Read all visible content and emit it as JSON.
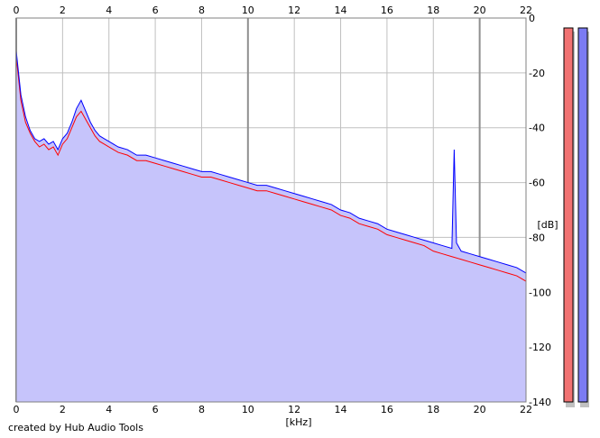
{
  "chart_data": {
    "type": "line",
    "title": "",
    "xlabel": "[kHz]",
    "ylabel": "[dB]",
    "xlim": [
      0,
      22
    ],
    "ylim": [
      -140,
      0
    ],
    "x_ticks": [
      0,
      2,
      4,
      6,
      8,
      10,
      12,
      14,
      16,
      18,
      20,
      22
    ],
    "y_ticks": [
      0,
      -20,
      -40,
      -60,
      -80,
      -100,
      -120,
      -140
    ],
    "grid": true,
    "fill_color": "#c6c4fb",
    "series": [
      {
        "color": "#ff0000",
        "x": [
          0.0,
          0.2,
          0.4,
          0.6,
          0.8,
          1.0,
          1.2,
          1.4,
          1.6,
          1.8,
          2.0,
          2.2,
          2.4,
          2.6,
          2.8,
          3.0,
          3.2,
          3.4,
          3.6,
          3.8,
          4.0,
          4.4,
          4.8,
          5.2,
          5.6,
          6.0,
          6.4,
          6.8,
          7.2,
          7.6,
          8.0,
          8.4,
          8.8,
          9.2,
          9.6,
          10.0,
          10.4,
          10.8,
          11.2,
          11.6,
          12.0,
          12.4,
          12.8,
          13.2,
          13.6,
          14.0,
          14.4,
          14.8,
          15.2,
          15.6,
          16.0,
          16.4,
          16.8,
          17.2,
          17.6,
          18.0,
          18.4,
          18.8,
          19.2,
          19.6,
          20.0,
          20.4,
          20.8,
          21.2,
          21.6,
          22.0
        ],
        "y": [
          -14,
          -30,
          -38,
          -42,
          -45,
          -47,
          -46,
          -48,
          -47,
          -50,
          -46,
          -44,
          -40,
          -36,
          -34,
          -37,
          -40,
          -43,
          -45,
          -46,
          -47,
          -49,
          -50,
          -52,
          -52,
          -53,
          -54,
          -55,
          -56,
          -57,
          -58,
          -58,
          -59,
          -60,
          -61,
          -62,
          -63,
          -63,
          -64,
          -65,
          -66,
          -67,
          -68,
          -69,
          -70,
          -72,
          -73,
          -75,
          -76,
          -77,
          -79,
          -80,
          -81,
          -82,
          -83,
          -85,
          -86,
          -87,
          -88,
          -89,
          -90,
          -91,
          -92,
          -93,
          -94,
          -96
        ]
      },
      {
        "color": "#0000ff",
        "x": [
          0.0,
          0.2,
          0.4,
          0.6,
          0.8,
          1.0,
          1.2,
          1.4,
          1.6,
          1.8,
          2.0,
          2.2,
          2.4,
          2.6,
          2.8,
          3.0,
          3.2,
          3.4,
          3.6,
          3.8,
          4.0,
          4.4,
          4.8,
          5.2,
          5.6,
          6.0,
          6.4,
          6.8,
          7.2,
          7.6,
          8.0,
          8.4,
          8.8,
          9.2,
          9.6,
          10.0,
          10.4,
          10.8,
          11.2,
          11.6,
          12.0,
          12.4,
          12.8,
          13.2,
          13.6,
          14.0,
          14.4,
          14.8,
          15.2,
          15.6,
          16.0,
          16.4,
          16.8,
          17.2,
          17.6,
          18.0,
          18.4,
          18.8,
          18.9,
          19.0,
          19.2,
          19.6,
          20.0,
          20.4,
          20.8,
          21.2,
          21.6,
          22.0
        ],
        "y": [
          -12,
          -28,
          -36,
          -41,
          -44,
          -45,
          -44,
          -46,
          -45,
          -48,
          -44,
          -42,
          -38,
          -33,
          -30,
          -34,
          -38,
          -41,
          -43,
          -44,
          -45,
          -47,
          -48,
          -50,
          -50,
          -51,
          -52,
          -53,
          -54,
          -55,
          -56,
          -56,
          -57,
          -58,
          -59,
          -60,
          -61,
          -61,
          -62,
          -63,
          -64,
          -65,
          -66,
          -67,
          -68,
          -70,
          -71,
          -73,
          -74,
          -75,
          -77,
          -78,
          -79,
          -80,
          -81,
          -82,
          -83,
          -84,
          -48,
          -82,
          -85,
          -86,
          -87,
          -88,
          -89,
          -90,
          -91,
          -93
        ]
      }
    ],
    "side_meters": [
      {
        "color": "#f17272"
      },
      {
        "color": "#7b7bf2"
      }
    ]
  },
  "footer": {
    "credit": "created by Hub Audio Tools"
  }
}
